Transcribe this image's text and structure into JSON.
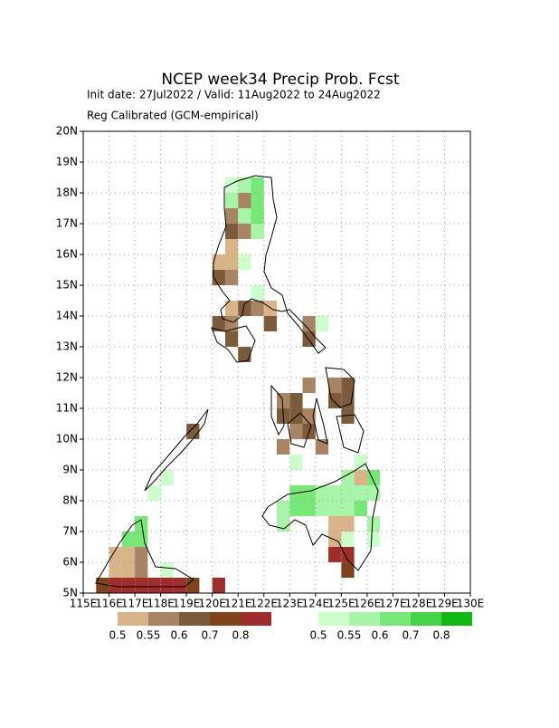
{
  "chart_data": {
    "type": "grid-map",
    "title": "NCEP week34 Precip Prob. Fcst",
    "subtitle": "Init date: 27Jul2022 / Valid: 11Aug2022 to 24Aug2022",
    "note": "Reg Calibrated (GCM-empirical)",
    "xlim": [
      115,
      130
    ],
    "ylim": [
      5,
      20
    ],
    "xticks": [
      {
        "value": 115,
        "label": "115E"
      },
      {
        "value": 116,
        "label": "116E"
      },
      {
        "value": 117,
        "label": "117E"
      },
      {
        "value": 118,
        "label": "118E"
      },
      {
        "value": 119,
        "label": "119E"
      },
      {
        "value": 120,
        "label": "120E"
      },
      {
        "value": 121,
        "label": "121E"
      },
      {
        "value": 122,
        "label": "122E"
      },
      {
        "value": 123,
        "label": "123E"
      },
      {
        "value": 124,
        "label": "124E"
      },
      {
        "value": 125,
        "label": "125E"
      },
      {
        "value": 126,
        "label": "126E"
      },
      {
        "value": 127,
        "label": "127E"
      },
      {
        "value": 128,
        "label": "128E"
      },
      {
        "value": 129,
        "label": "129E"
      },
      {
        "value": 130,
        "label": "130E"
      }
    ],
    "yticks": [
      {
        "value": 5,
        "label": "5N"
      },
      {
        "value": 6,
        "label": "6N"
      },
      {
        "value": 7,
        "label": "7N"
      },
      {
        "value": 8,
        "label": "8N"
      },
      {
        "value": 9,
        "label": "9N"
      },
      {
        "value": 10,
        "label": "10N"
      },
      {
        "value": 11,
        "label": "11N"
      },
      {
        "value": 12,
        "label": "12N"
      },
      {
        "value": 13,
        "label": "13N"
      },
      {
        "value": 14,
        "label": "14N"
      },
      {
        "value": 15,
        "label": "15N"
      },
      {
        "value": 16,
        "label": "16N"
      },
      {
        "value": 17,
        "label": "17N"
      },
      {
        "value": 18,
        "label": "18N"
      },
      {
        "value": 19,
        "label": "19N"
      },
      {
        "value": 20,
        "label": "20N"
      }
    ],
    "grid": true,
    "cell_size": 0.5,
    "below": {
      "bounds": [
        0.5,
        0.55,
        0.6,
        0.7,
        0.8
      ],
      "colors": [
        "#d8b488",
        "#a88462",
        "#7c5a3a",
        "#80441a",
        "#a02c2c"
      ],
      "lon": [
        121,
        120.5,
        120.5,
        121,
        120.5,
        120,
        120.5,
        120,
        120.5,
        120.5,
        121,
        121.5,
        122,
        120,
        120.5,
        122,
        123.5,
        120.5,
        123.5,
        121,
        123.5,
        124.5,
        125,
        122.5,
        123,
        124.5,
        125,
        122.5,
        123,
        123.5,
        125,
        123,
        123.5,
        122.5,
        124,
        125.5,
        124.5,
        125,
        124.5,
        124.5,
        125,
        125,
        116,
        116.5,
        117,
        116,
        116.5,
        117,
        115.5,
        116,
        116.5,
        117,
        117.5,
        118,
        118.5,
        119,
        120,
        119
      ],
      "lat": [
        17.5,
        17,
        16.5,
        16.5,
        16,
        15.5,
        15.5,
        15,
        15,
        14,
        14,
        14,
        14,
        13.5,
        13.5,
        13.5,
        13.5,
        13,
        13,
        12.5,
        11.5,
        11.5,
        11.5,
        11,
        11,
        11,
        11,
        10.5,
        10.5,
        10.5,
        10.5,
        10,
        10,
        9.5,
        9.5,
        8.5,
        7,
        7,
        6.5,
        6,
        6,
        5.5,
        6,
        6,
        6,
        5.5,
        5.5,
        5.5,
        5,
        5,
        5,
        5,
        5,
        5,
        5,
        5,
        5,
        10
      ],
      "values": [
        0.57,
        0.57,
        0.65,
        0.57,
        0.52,
        0.52,
        0.52,
        0.65,
        0.57,
        0.52,
        0.65,
        0.57,
        0.52,
        0.65,
        0.57,
        0.65,
        0.57,
        0.65,
        0.65,
        0.65,
        0.57,
        0.57,
        0.65,
        0.57,
        0.65,
        0.65,
        0.65,
        0.65,
        0.65,
        0.57,
        0.65,
        0.57,
        0.65,
        0.57,
        0.57,
        0.52,
        0.52,
        0.52,
        0.52,
        0.85,
        0.85,
        0.75,
        0.52,
        0.52,
        0.57,
        0.52,
        0.52,
        0.57,
        0.75,
        0.85,
        0.85,
        0.85,
        0.85,
        0.85,
        0.85,
        0.75,
        0.85,
        0.65
      ]
    },
    "above": {
      "bounds": [
        0.5,
        0.55,
        0.6,
        0.7,
        0.8
      ],
      "colors": [
        "#ccffcc",
        "#a8f5a8",
        "#77e877",
        "#44d444",
        "#11b811"
      ],
      "lon": [
        120.5,
        121,
        121.5,
        120.5,
        121.5,
        121,
        121.5,
        121.5,
        121,
        121.5,
        124,
        123,
        125.5,
        118,
        125,
        126,
        123,
        123.5,
        124,
        124.5,
        125,
        125.5,
        126,
        122.5,
        123,
        123.5,
        124,
        124.5,
        125,
        125.5,
        122.5,
        126,
        125,
        126,
        117,
        116.5,
        117,
        118,
        117.5
      ],
      "lat": [
        18,
        18,
        18,
        17.5,
        17.5,
        17,
        17,
        16.5,
        15.5,
        14.5,
        13.5,
        9,
        9,
        8.5,
        8.5,
        8.5,
        8,
        8,
        8,
        8,
        8,
        8,
        8,
        7.5,
        7.5,
        7.5,
        7.5,
        7.5,
        7.5,
        7.5,
        7,
        7,
        6.5,
        6.5,
        7,
        6.5,
        6.5,
        5.5,
        8
      ],
      "values": [
        0.52,
        0.57,
        0.65,
        0.57,
        0.65,
        0.57,
        0.65,
        0.57,
        0.52,
        0.52,
        0.52,
        0.52,
        0.52,
        0.52,
        0.57,
        0.65,
        0.65,
        0.65,
        0.57,
        0.57,
        0.57,
        0.57,
        0.57,
        0.57,
        0.65,
        0.65,
        0.57,
        0.57,
        0.57,
        0.65,
        0.57,
        0.57,
        0.52,
        0.52,
        0.65,
        0.65,
        0.65,
        0.52,
        0.52
      ]
    }
  }
}
